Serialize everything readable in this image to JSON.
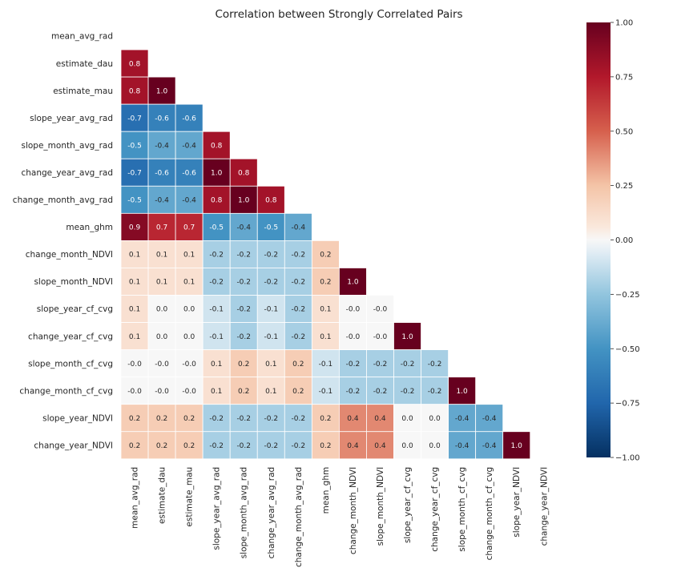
{
  "chart_data": {
    "type": "heatmap",
    "title": "Correlation between Strongly Correlated Pairs",
    "xlabel": "",
    "ylabel": "",
    "colormap": "RdBu_r",
    "mask": "upper-triangle-including-diagonal",
    "labels": [
      "mean_avg_rad",
      "estimate_dau",
      "estimate_mau",
      "slope_year_avg_rad",
      "slope_month_avg_rad",
      "change_year_avg_rad",
      "change_month_avg_rad",
      "mean_ghm",
      "change_month_NDVI",
      "slope_month_NDVI",
      "slope_year_cf_cvg",
      "change_year_cf_cvg",
      "slope_month_cf_cvg",
      "change_month_cf_cvg",
      "slope_year_NDVI",
      "change_year_NDVI"
    ],
    "values": [
      [],
      [
        "0.8"
      ],
      [
        "0.8",
        "1.0"
      ],
      [
        "-0.7",
        "-0.6",
        "-0.6"
      ],
      [
        "-0.5",
        "-0.4",
        "-0.4",
        "0.8"
      ],
      [
        "-0.7",
        "-0.6",
        "-0.6",
        "1.0",
        "0.8"
      ],
      [
        "-0.5",
        "-0.4",
        "-0.4",
        "0.8",
        "1.0",
        "0.8"
      ],
      [
        "0.9",
        "0.7",
        "0.7",
        "-0.5",
        "-0.4",
        "-0.5",
        "-0.4"
      ],
      [
        "0.1",
        "0.1",
        "0.1",
        "-0.2",
        "-0.2",
        "-0.2",
        "-0.2",
        "0.2"
      ],
      [
        "0.1",
        "0.1",
        "0.1",
        "-0.2",
        "-0.2",
        "-0.2",
        "-0.2",
        "0.2",
        "1.0"
      ],
      [
        "0.1",
        "0.0",
        "0.0",
        "-0.1",
        "-0.2",
        "-0.1",
        "-0.2",
        "0.1",
        "-0.0",
        "-0.0"
      ],
      [
        "0.1",
        "0.0",
        "0.0",
        "-0.1",
        "-0.2",
        "-0.1",
        "-0.2",
        "0.1",
        "-0.0",
        "-0.0",
        "1.0"
      ],
      [
        "-0.0",
        "-0.0",
        "-0.0",
        "0.1",
        "0.2",
        "0.1",
        "0.2",
        "-0.1",
        "-0.2",
        "-0.2",
        "-0.2",
        "-0.2"
      ],
      [
        "-0.0",
        "-0.0",
        "-0.0",
        "0.1",
        "0.2",
        "0.1",
        "0.2",
        "-0.1",
        "-0.2",
        "-0.2",
        "-0.2",
        "-0.2",
        "1.0"
      ],
      [
        "0.2",
        "0.2",
        "0.2",
        "-0.2",
        "-0.2",
        "-0.2",
        "-0.2",
        "0.2",
        "0.4",
        "0.4",
        "0.0",
        "0.0",
        "-0.4",
        "-0.4"
      ],
      [
        "0.2",
        "0.2",
        "0.2",
        "-0.2",
        "-0.2",
        "-0.2",
        "-0.2",
        "0.2",
        "0.4",
        "0.4",
        "0.0",
        "0.0",
        "-0.4",
        "-0.4",
        "1.0"
      ]
    ],
    "colorbar": {
      "range": [
        -1.0,
        1.0
      ],
      "ticks": [
        1.0,
        0.75,
        0.5,
        0.25,
        0.0,
        -0.25,
        -0.5,
        -0.75,
        -1.0
      ],
      "tick_labels": [
        "1.00",
        "0.75",
        "0.50",
        "0.25",
        "0.00",
        "−0.25",
        "−0.50",
        "−0.75",
        "−1.00"
      ]
    }
  }
}
